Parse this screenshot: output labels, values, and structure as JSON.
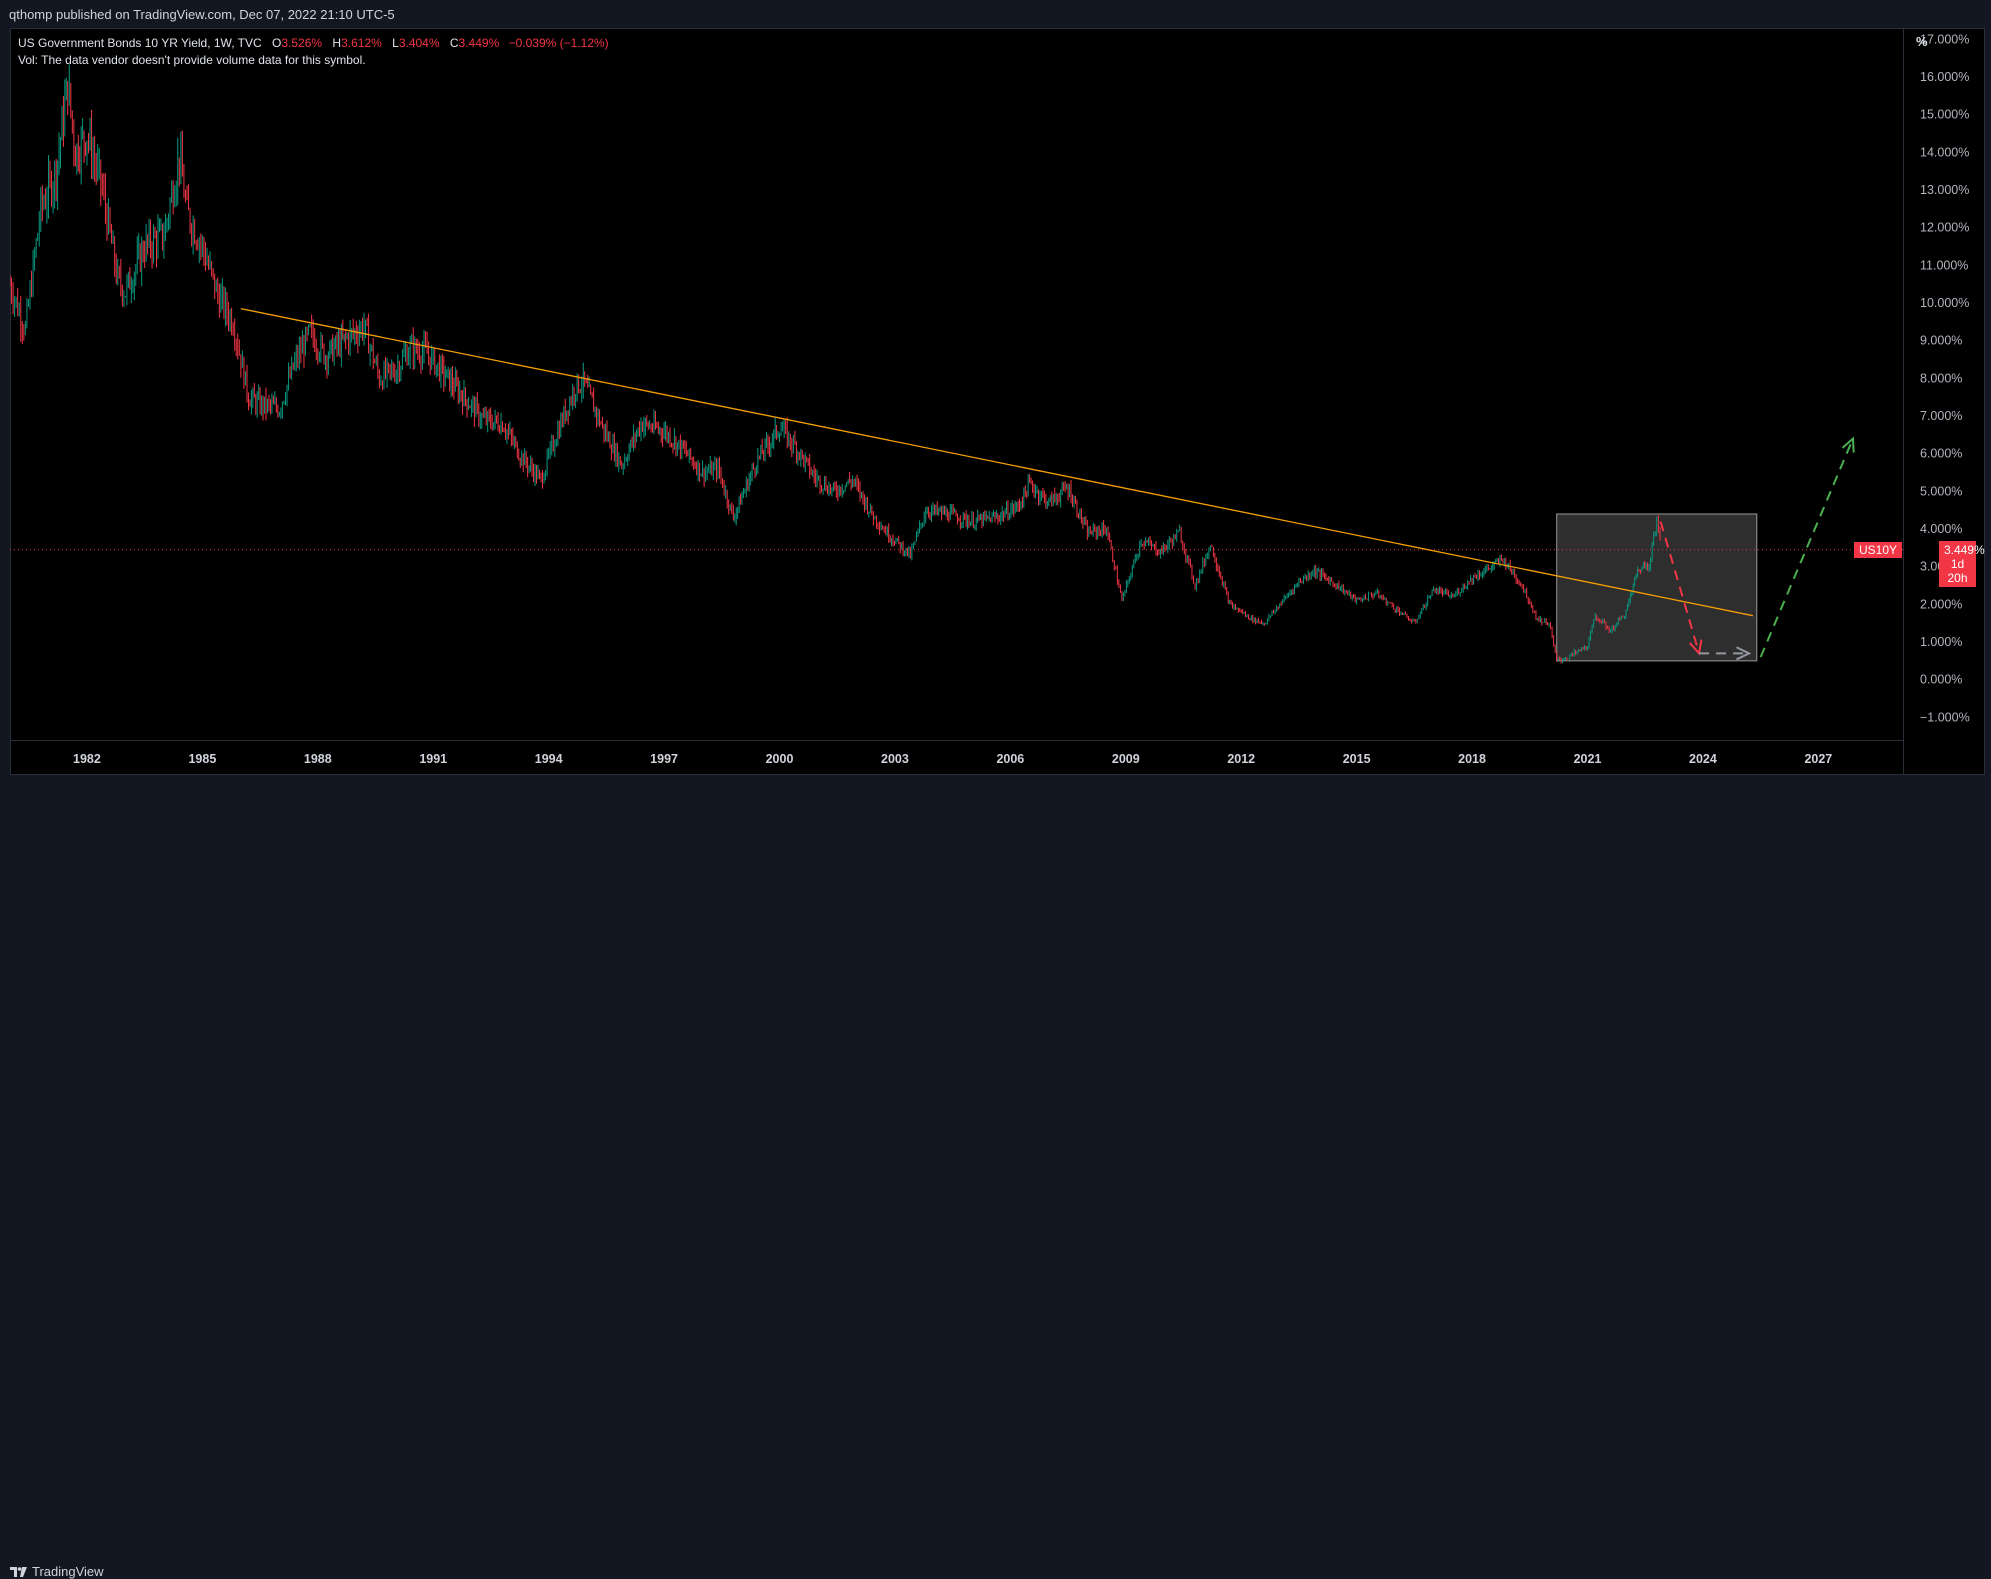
{
  "header": {
    "published_text": "qthomp published on TradingView.com, Dec 07, 2022 21:10 UTC-5"
  },
  "legend": {
    "title": "US Government Bonds 10 YR Yield, 1W, TVC",
    "open_label": "O",
    "open_value": "3.526%",
    "high_label": "H",
    "high_value": "3.612%",
    "low_label": "L",
    "low_value": "3.404%",
    "close_label": "C",
    "close_value": "3.449%",
    "change": "−0.039% (−1.12%)",
    "volume_note": "Vol: The data vendor doesn't provide volume data for this symbol."
  },
  "price_axis": {
    "unit": "%"
  },
  "last_price": {
    "symbol": "US10Y",
    "price": "3.449%",
    "countdown": "1d 20h"
  },
  "footer": {
    "brand": "TradingView"
  },
  "colors": {
    "background": "#000000",
    "up": "#089981",
    "down": "#f23645",
    "trendline": "#f59f00",
    "projection_up": "#4caf50",
    "projection_down": "#f23645",
    "projection_flat": "#9598a1"
  },
  "chart_data": {
    "type": "line",
    "title": "US Government Bonds 10 YR Yield, 1W, TVC",
    "xlabel": "",
    "ylabel": "%",
    "y_ticks": [
      "−1.000%",
      "0.000%",
      "1.000%",
      "2.000%",
      "3.000%",
      "4.000%",
      "5.000%",
      "6.000%",
      "7.000%",
      "8.000%",
      "9.000%",
      "10.000%",
      "11.000%",
      "12.000%",
      "13.000%",
      "14.000%",
      "15.000%",
      "16.000%",
      "17.000%"
    ],
    "y_tick_values": [
      -1,
      0,
      1,
      2,
      3,
      4,
      5,
      6,
      7,
      8,
      9,
      10,
      11,
      12,
      13,
      14,
      15,
      16,
      17
    ],
    "x_ticks": [
      "1982",
      "1985",
      "1988",
      "1991",
      "1994",
      "1997",
      "2000",
      "2003",
      "2006",
      "2009",
      "2012",
      "2015",
      "2018",
      "2021",
      "2024",
      "2027"
    ],
    "x_tick_values": [
      1982,
      1985,
      1988,
      1991,
      1994,
      1997,
      2000,
      2003,
      2006,
      2009,
      2012,
      2015,
      2018,
      2021,
      2024,
      2027
    ],
    "xlim": [
      1980.0,
      2029.2
    ],
    "ylim": [
      -1.6,
      17.3
    ],
    "grid": false,
    "series": [
      {
        "name": "US10Y",
        "x": [
          1980.0,
          1980.4,
          1980.8,
          1981.2,
          1981.5,
          1981.7,
          1982.0,
          1982.4,
          1982.8,
          1983.0,
          1983.5,
          1984.0,
          1984.4,
          1984.6,
          1985.0,
          1985.4,
          1985.8,
          1986.2,
          1986.5,
          1987.0,
          1987.4,
          1987.8,
          1988.2,
          1988.8,
          1989.2,
          1989.6,
          1990.0,
          1990.4,
          1990.8,
          1991.2,
          1991.8,
          1992.3,
          1992.8,
          1993.3,
          1993.8,
          1994.2,
          1994.7,
          1994.9,
          1995.4,
          1995.9,
          1996.4,
          1997.0,
          1997.5,
          1998.0,
          1998.4,
          1998.8,
          1999.4,
          2000.0,
          2000.4,
          2000.9,
          2001.4,
          2001.9,
          2002.4,
          2002.8,
          2003.4,
          2003.8,
          2004.4,
          2005.0,
          2005.6,
          2006.2,
          2006.5,
          2007.0,
          2007.5,
          2008.0,
          2008.5,
          2008.9,
          2009.4,
          2009.9,
          2010.4,
          2010.8,
          2011.2,
          2011.7,
          2012.3,
          2012.6,
          2013.0,
          2013.5,
          2013.9,
          2014.5,
          2015.0,
          2015.5,
          2016.0,
          2016.5,
          2017.0,
          2017.5,
          2018.0,
          2018.5,
          2018.8,
          2019.3,
          2019.7,
          2020.0,
          2020.2,
          2020.5,
          2021.0,
          2021.2,
          2021.6,
          2022.0,
          2022.3,
          2022.6,
          2022.8,
          2022.93
        ],
        "y": [
          10.5,
          9.3,
          12.5,
          13.5,
          15.8,
          14.0,
          14.5,
          13.0,
          10.6,
          10.3,
          11.5,
          11.8,
          13.9,
          12.4,
          11.5,
          10.2,
          9.5,
          7.5,
          7.3,
          7.2,
          8.4,
          9.2,
          8.6,
          9.1,
          9.4,
          8.0,
          8.2,
          8.8,
          8.7,
          8.2,
          7.5,
          6.9,
          6.8,
          5.9,
          5.3,
          6.5,
          7.8,
          7.9,
          6.7,
          5.7,
          6.8,
          6.6,
          6.1,
          5.5,
          5.6,
          4.3,
          5.8,
          6.7,
          6.2,
          5.4,
          5.0,
          5.3,
          4.4,
          3.9,
          3.3,
          4.5,
          4.4,
          4.2,
          4.3,
          4.6,
          5.2,
          4.7,
          5.1,
          3.9,
          4.0,
          2.1,
          3.7,
          3.4,
          3.9,
          2.5,
          3.6,
          2.0,
          1.6,
          1.5,
          2.0,
          2.6,
          2.9,
          2.5,
          2.1,
          2.3,
          1.9,
          1.5,
          2.4,
          2.2,
          2.7,
          3.0,
          3.2,
          2.5,
          1.6,
          1.5,
          0.5,
          0.6,
          0.9,
          1.7,
          1.3,
          1.8,
          2.9,
          3.1,
          4.2,
          3.45
        ]
      }
    ],
    "last_price_line": 3.449,
    "annotations": [
      {
        "kind": "trendline",
        "x": [
          1986.0,
          2025.3
        ],
        "y": [
          9.85,
          1.7
        ]
      },
      {
        "kind": "rectangle",
        "x": [
          2020.2,
          2025.4
        ],
        "y": [
          0.5,
          4.4
        ]
      },
      {
        "kind": "projection-down",
        "x": [
          2022.9,
          2023.9
        ],
        "y": [
          4.2,
          0.7
        ]
      },
      {
        "kind": "projection-flat",
        "x": [
          2023.9,
          2025.2
        ],
        "y": [
          0.7,
          0.7
        ]
      },
      {
        "kind": "projection-up",
        "x": [
          2025.5,
          2027.9
        ],
        "y": [
          0.6,
          6.4
        ]
      }
    ]
  }
}
